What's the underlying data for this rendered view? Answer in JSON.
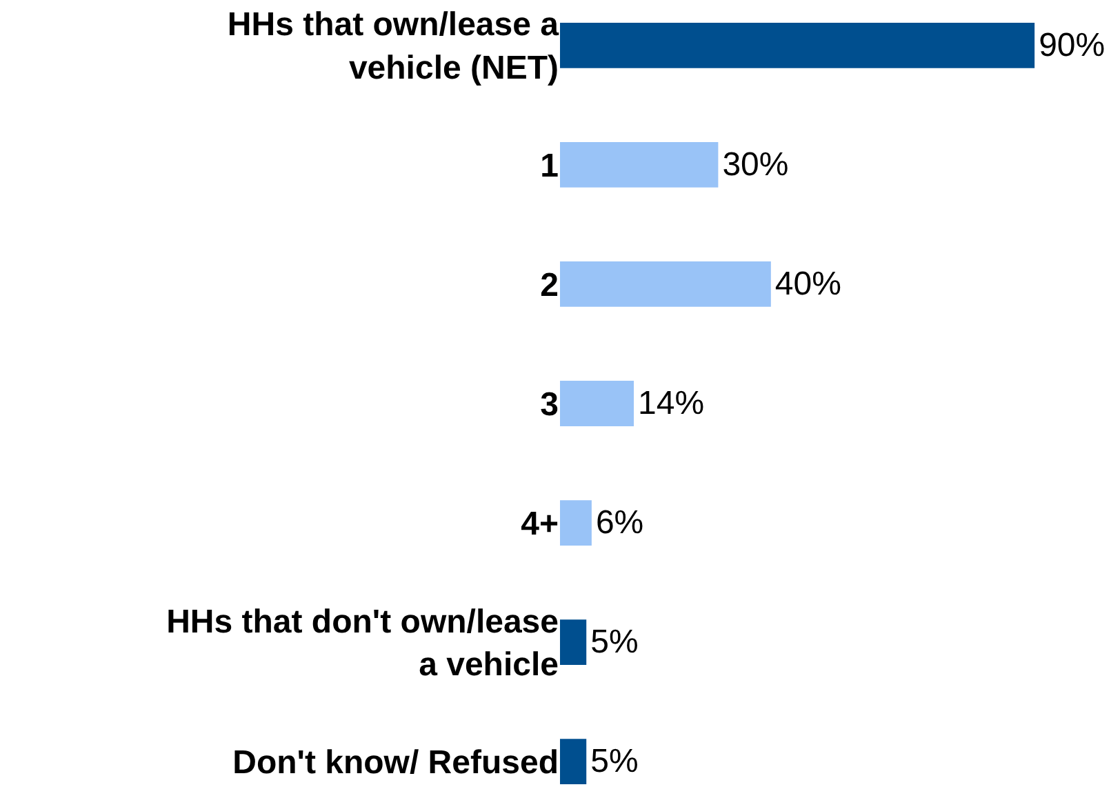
{
  "chart_data": {
    "type": "bar",
    "orientation": "horizontal",
    "categories": [
      "HHs that own/lease a vehicle (NET)",
      "1",
      "2",
      "3",
      "4+",
      "HHs that don't own/lease a vehicle",
      "Don't know/ Refused"
    ],
    "values": [
      90,
      30,
      40,
      14,
      6,
      5,
      5
    ],
    "colors": [
      "#004f8f",
      "#99c3f7",
      "#99c3f7",
      "#99c3f7",
      "#99c3f7",
      "#004f8f",
      "#004f8f"
    ],
    "value_labels": [
      "90%",
      "30%",
      "40%",
      "14%",
      "6%",
      "5%",
      "5%"
    ],
    "data_labels": false
  }
}
